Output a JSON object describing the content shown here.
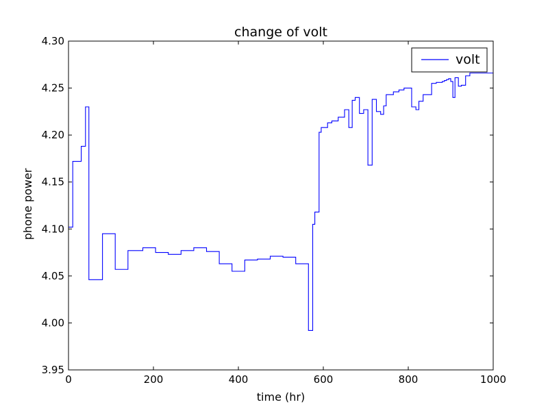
{
  "chart_data": {
    "type": "line",
    "title": "change of volt",
    "xlabel": "time (hr)",
    "ylabel": "phone power",
    "xlim": [
      0,
      1000
    ],
    "ylim": [
      3.95,
      4.3
    ],
    "x_ticks": [
      0,
      200,
      400,
      600,
      800,
      1000
    ],
    "x_tick_labels": [
      "0",
      "200",
      "400",
      "600",
      "800",
      "1000"
    ],
    "y_ticks": [
      3.95,
      4.0,
      4.05,
      4.1,
      4.15,
      4.2,
      4.25,
      4.3
    ],
    "y_tick_labels": [
      "3.95",
      "4.00",
      "4.05",
      "4.10",
      "4.15",
      "4.20",
      "4.25",
      "4.30"
    ],
    "grid": false,
    "legend": {
      "position": "top-right",
      "entries": [
        "volt"
      ]
    },
    "series": [
      {
        "name": "volt",
        "color": "#0000ff",
        "step": "post",
        "x": [
          0,
          10,
          30,
          40,
          48,
          80,
          110,
          140,
          175,
          205,
          235,
          265,
          295,
          325,
          355,
          385,
          415,
          445,
          475,
          505,
          535,
          565,
          575,
          580,
          590,
          595,
          610,
          620,
          635,
          650,
          660,
          668,
          675,
          685,
          695,
          705,
          715,
          725,
          735,
          742,
          748,
          758,
          765,
          778,
          790,
          808,
          818,
          825,
          835,
          843,
          855,
          866,
          880,
          885,
          890,
          895,
          900,
          905,
          910,
          918,
          925,
          935,
          945,
          955,
          965,
          975,
          985,
          1000
        ],
        "y": [
          4.102,
          4.172,
          4.188,
          4.23,
          4.046,
          4.095,
          4.057,
          4.077,
          4.08,
          4.075,
          4.073,
          4.077,
          4.08,
          4.076,
          4.063,
          4.055,
          4.067,
          4.068,
          4.071,
          4.07,
          4.063,
          3.992,
          4.105,
          4.118,
          4.203,
          4.208,
          4.213,
          4.215,
          4.219,
          4.227,
          4.208,
          4.237,
          4.24,
          4.223,
          4.227,
          4.168,
          4.238,
          4.225,
          4.222,
          4.231,
          4.243,
          4.243,
          4.246,
          4.248,
          4.25,
          4.23,
          4.227,
          4.236,
          4.243,
          4.243,
          4.255,
          4.256,
          4.257,
          4.258,
          4.259,
          4.26,
          4.257,
          4.24,
          4.261,
          4.252,
          4.253,
          4.263,
          4.266,
          4.266,
          4.266,
          4.266,
          4.266,
          4.266
        ]
      }
    ]
  }
}
